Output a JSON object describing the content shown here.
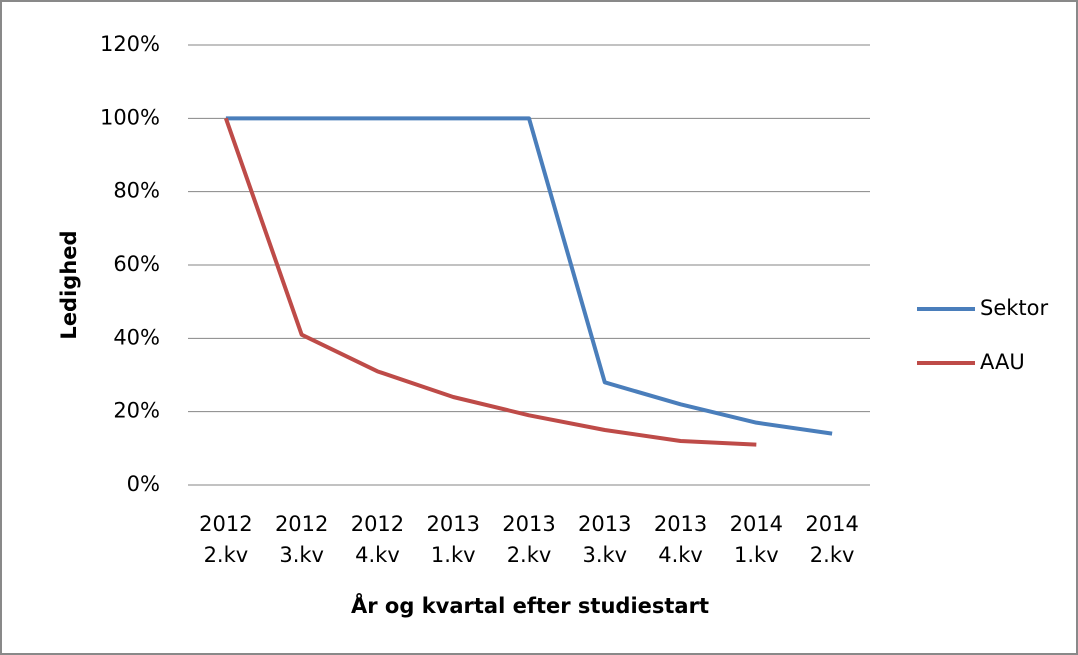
{
  "chart_data": {
    "type": "line",
    "x_label": "År og kvartal efter studiestart",
    "y_label": "Ledighed",
    "categories": [
      "2012 2.kv",
      "2012 3.kv",
      "2012 4.kv",
      "2013 1.kv",
      "2013 2.kv",
      "2013 3.kv",
      "2013 4.kv",
      "2014 1.kv",
      "2014 2.kv"
    ],
    "series": [
      {
        "name": "Sektor",
        "color": "#4a7ebb",
        "values": [
          100,
          100,
          100,
          100,
          100,
          28,
          22,
          17,
          14
        ]
      },
      {
        "name": "AAU",
        "color": "#be4b48",
        "values": [
          100,
          41,
          31,
          24,
          19,
          15,
          12,
          11,
          null
        ]
      }
    ],
    "ylim": [
      0,
      120
    ],
    "yticks": [
      {
        "value": 0,
        "label": "0%"
      },
      {
        "value": 20,
        "label": "20%"
      },
      {
        "value": 40,
        "label": "40%"
      },
      {
        "value": 60,
        "label": "60%"
      },
      {
        "value": 80,
        "label": "80%"
      },
      {
        "value": 100,
        "label": "100%"
      },
      {
        "value": 120,
        "label": "120%"
      }
    ],
    "grid": true,
    "legend": "right"
  }
}
